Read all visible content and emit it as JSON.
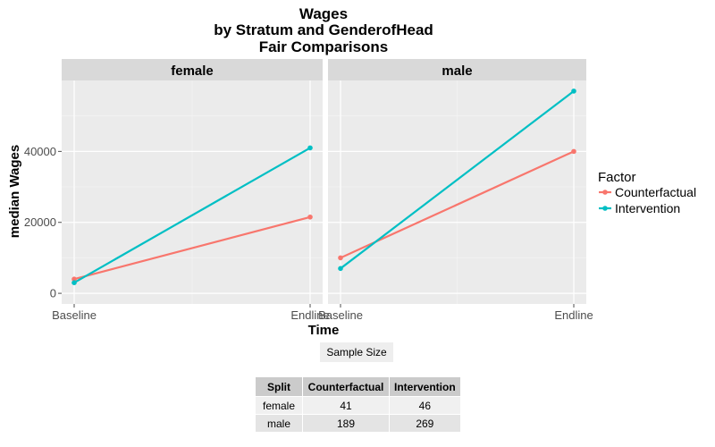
{
  "chart_data": {
    "type": "line",
    "title": [
      "Wages",
      "by Stratum and GenderofHead",
      "Fair Comparisons"
    ],
    "xlabel": "Time",
    "ylabel": "median Wages",
    "categories": [
      "Baseline",
      "Endline"
    ],
    "ylim": [
      -3000,
      60000
    ],
    "y_ticks": [
      0,
      20000,
      40000
    ],
    "y_tick_labels": [
      "0",
      "20000",
      "40000"
    ],
    "grid": true,
    "legend": {
      "title": "Factor",
      "placement": "right",
      "entries": [
        "Counterfactual",
        "Intervention"
      ]
    },
    "series_colors": {
      "Counterfactual": "#F8766D",
      "Intervention": "#00BFC4"
    },
    "panels": [
      {
        "label": "female",
        "series": [
          {
            "name": "Counterfactual",
            "values": [
              4000,
              21500
            ]
          },
          {
            "name": "Intervention",
            "values": [
              3000,
              41000
            ]
          }
        ]
      },
      {
        "label": "male",
        "series": [
          {
            "name": "Counterfactual",
            "values": [
              10000,
              40000
            ]
          },
          {
            "name": "Intervention",
            "values": [
              7000,
              57000
            ]
          }
        ]
      }
    ]
  },
  "sample_size": {
    "label": "Sample Size",
    "columns": [
      "Split",
      "Counterfactual",
      "Intervention"
    ],
    "rows": [
      [
        "female",
        "41",
        "46"
      ],
      [
        "male",
        "189",
        "269"
      ]
    ]
  }
}
